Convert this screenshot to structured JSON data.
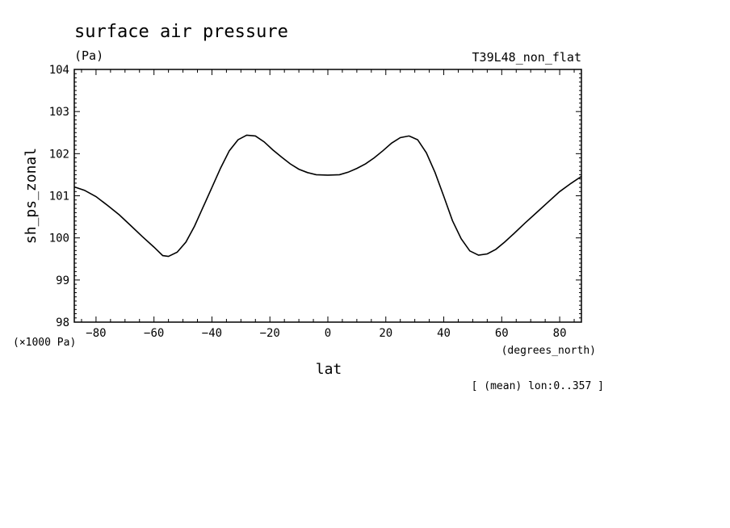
{
  "chart_data": {
    "type": "line",
    "title": "surface air pressure",
    "units": "(Pa)",
    "experiment": "T39L48_non_flat",
    "ylabel": "sh_ps_zonal",
    "xlabel": "lat",
    "y_scale_note": "(×1000 Pa)",
    "x_unit_note": "(degrees_north)",
    "footnote": "[ (mean) lon:0..357 ]",
    "xlim": [
      -87.5,
      87.5
    ],
    "ylim": [
      98,
      104
    ],
    "x_ticks": [
      -80,
      -60,
      -40,
      -20,
      0,
      20,
      40,
      60,
      80
    ],
    "x_tick_labels": [
      "−80",
      "−60",
      "−40",
      "−20",
      "0",
      "20",
      "40",
      "60",
      "80"
    ],
    "y_ticks": [
      98,
      99,
      100,
      101,
      102,
      103,
      104
    ],
    "y_tick_labels": [
      "98",
      "99",
      "100",
      "101",
      "102",
      "103",
      "104"
    ],
    "series": [
      {
        "x": [
          -87.5,
          -84,
          -80,
          -76,
          -72,
          -68,
          -64,
          -60,
          -57,
          -55,
          -52,
          -49,
          -46,
          -43,
          -40,
          -37,
          -34,
          -31,
          -28,
          -25,
          -22,
          -19,
          -16,
          -13,
          -10,
          -7,
          -4,
          0,
          4,
          7,
          10,
          13,
          16,
          19,
          22,
          25,
          28,
          31,
          34,
          37,
          40,
          43,
          46,
          49,
          52,
          55,
          58,
          61,
          64,
          68,
          72,
          76,
          80,
          84,
          87.5
        ],
        "values": [
          101.21,
          101.13,
          100.98,
          100.77,
          100.55,
          100.29,
          100.03,
          99.78,
          99.58,
          99.56,
          99.66,
          99.9,
          100.28,
          100.74,
          101.2,
          101.66,
          102.07,
          102.33,
          102.44,
          102.42,
          102.28,
          102.09,
          101.92,
          101.76,
          101.63,
          101.55,
          101.5,
          101.49,
          101.5,
          101.56,
          101.65,
          101.76,
          101.9,
          102.07,
          102.25,
          102.38,
          102.42,
          102.33,
          102.02,
          101.55,
          100.99,
          100.41,
          99.98,
          99.69,
          99.59,
          99.62,
          99.73,
          99.9,
          100.09,
          100.35,
          100.6,
          100.85,
          101.1,
          101.3,
          101.46
        ]
      }
    ]
  }
}
